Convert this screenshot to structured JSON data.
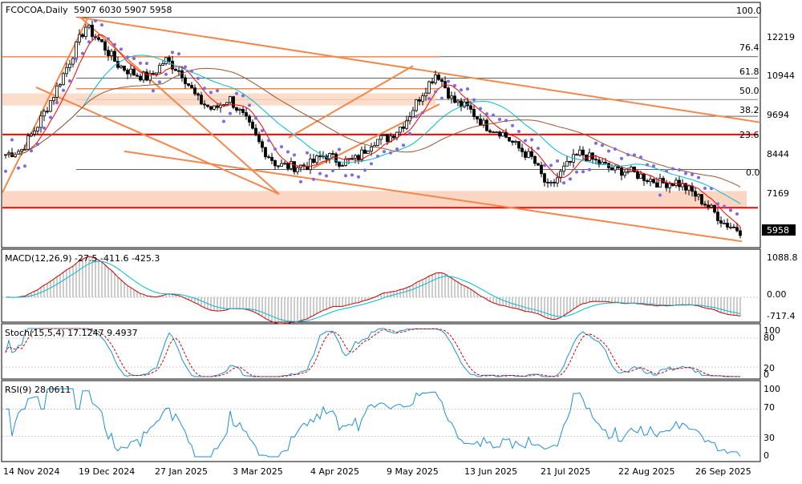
{
  "header": {
    "symbol": "FCOCOA,Daily",
    "ohlc": "5907 6030 5907 5958"
  },
  "colors": {
    "bull": "#000000",
    "bear": "#000000",
    "trendline": "#f4874b",
    "support_line": "#ff0000",
    "zone": "#fbd3bd",
    "ma_fast": "#ff0000",
    "ma_medium": "#00bcd4",
    "ma_slow": "#a0522d",
    "sar": "#7b68ee",
    "macd_line": "#cc0000",
    "signal_line": "#00bcd4",
    "stoch_main": "#1f8fd6",
    "stoch_signal": "#cc0000",
    "rsi": "#1f8fd6",
    "fib": "#000000"
  },
  "price_panel": {
    "price_labels": [
      "12219",
      "10944",
      "9694",
      "8444",
      "7169"
    ],
    "current_price": "5958",
    "fib_labels": [
      "100.0",
      "76.4",
      "61.8",
      "50.0",
      "38.2",
      "23.6",
      "0.0"
    ]
  },
  "macd_panel": {
    "title": "MACD(12,26,9) -27.5 -411.6 -425.3",
    "labels": [
      "1088.8",
      "0.00",
      "-717.4"
    ]
  },
  "stoch_panel": {
    "title": "Stoch(15,5,4) 17.1247 9.4937",
    "labels": [
      "100",
      "80",
      "20",
      "0"
    ]
  },
  "rsi_panel": {
    "title": "RSI(9) 28.0611",
    "labels": [
      "100",
      "70",
      "30",
      "0"
    ]
  },
  "x_axis": {
    "labels": [
      "14 Nov 2024",
      "19 Dec 2024",
      "27 Jan 2025",
      "3 Mar 2025",
      "4 Apr 2025",
      "9 May 2025",
      "13 Jun 2025",
      "21 Jul 2025",
      "22 Aug 2025",
      "26 Sep 2025"
    ]
  },
  "chart_data": {
    "type": "candlestick",
    "title": "FCOCOA,Daily",
    "x_start": "14 Nov 2024",
    "x_end": "26 Sep 2025",
    "ylim": [
      5500,
      13300
    ],
    "fib_levels": [
      {
        "label": "100.0",
        "price": 12950
      },
      {
        "label": "76.4",
        "price": 11650
      },
      {
        "label": "61.8",
        "price": 10950
      },
      {
        "label": "50.0",
        "price": 10250
      },
      {
        "label": "38.2",
        "price": 9700
      },
      {
        "label": "23.6",
        "price": 9100
      },
      {
        "label": "0.0",
        "price": 7950
      }
    ],
    "close_path": [
      8450,
      8600,
      9400,
      10400,
      11500,
      12650,
      12100,
      11400,
      11100,
      10950,
      11550,
      11150,
      10250,
      9900,
      10300,
      9600,
      8700,
      8100,
      8050,
      8100,
      8450,
      8200,
      8300,
      8900,
      9000,
      9500,
      10400,
      11150,
      10200,
      9950,
      9400,
      9200,
      8700,
      8300,
      7300,
      8000,
      8500,
      8200,
      7950,
      7900,
      7700,
      7500,
      7550,
      7200,
      6750,
      6200,
      5958
    ],
    "macd": {
      "macd": -411.6,
      "signal": -425.3,
      "histogram": -27.5,
      "range": [
        -717.4,
        1088.8
      ]
    },
    "stoch": {
      "main": 17.1247,
      "signal": 9.4937,
      "levels": [
        20,
        80
      ]
    },
    "rsi": {
      "value": 28.0611,
      "levels": [
        30,
        70
      ]
    },
    "current_price": 5958
  }
}
